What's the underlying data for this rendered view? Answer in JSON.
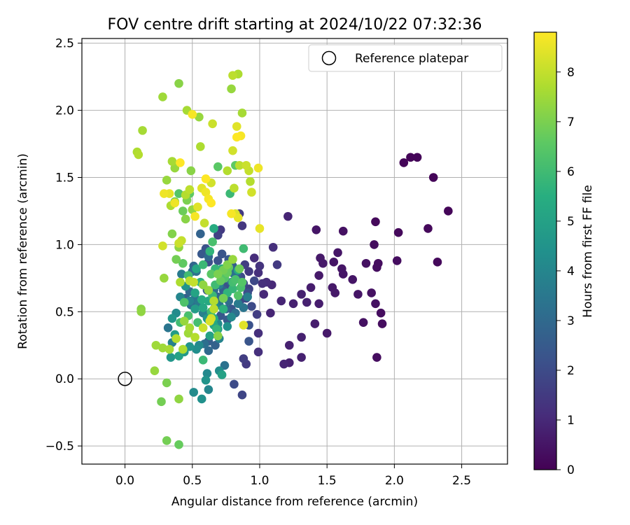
{
  "chart_data": {
    "type": "scatter",
    "title": "FOV centre drift starting at 2024/10/22 07:32:36",
    "xlabel": "Angular distance from reference (arcmin)",
    "ylabel": "Rotation from reference (arcmin)",
    "xlim": [
      -0.32,
      2.84
    ],
    "ylim": [
      -0.635,
      2.535
    ],
    "xticks": [
      0.0,
      0.5,
      1.0,
      1.5,
      2.0,
      2.5
    ],
    "xtick_labels": [
      "0.0",
      "0.5",
      "1.0",
      "1.5",
      "2.0",
      "2.5"
    ],
    "yticks": [
      -0.5,
      0.0,
      0.5,
      1.0,
      1.5,
      2.0,
      2.5
    ],
    "ytick_labels": [
      "−0.5",
      "0.0",
      "0.5",
      "1.0",
      "1.5",
      "2.0",
      "2.5"
    ],
    "grid": true,
    "legend": {
      "placement": "top-right",
      "entries": [
        {
          "label": "Reference platepar",
          "marker": "open-circle",
          "color": "#000000"
        }
      ]
    },
    "reference_point": {
      "x": 0.0,
      "y": 0.0
    },
    "colorbar": {
      "label": "Hours from first FF file",
      "colormap": "viridis",
      "range": [
        0,
        8.8
      ],
      "ticks": [
        0,
        1,
        2,
        3,
        4,
        5,
        6,
        7,
        8
      ],
      "tick_labels": [
        "0",
        "1",
        "2",
        "3",
        "4",
        "5",
        "6",
        "7",
        "8"
      ],
      "colors": [
        "#440154",
        "#472d7b",
        "#3b528b",
        "#2c728e",
        "#21918c",
        "#28ae80",
        "#5ec962",
        "#addc30",
        "#fde725"
      ]
    },
    "points": [
      [
        2.07,
        1.61,
        0.1
      ],
      [
        2.12,
        1.65,
        0.1
      ],
      [
        2.17,
        1.65,
        0.1
      ],
      [
        2.29,
        1.5,
        0.1
      ],
      [
        2.4,
        1.25,
        0.1
      ],
      [
        2.25,
        1.12,
        0.2
      ],
      [
        2.03,
        1.09,
        0.2
      ],
      [
        1.86,
        1.17,
        0.2
      ],
      [
        1.85,
        1.0,
        0.3
      ],
      [
        1.88,
        0.86,
        0.3
      ],
      [
        1.87,
        0.83,
        0.3
      ],
      [
        2.02,
        0.88,
        0.3
      ],
      [
        2.32,
        0.87,
        0.2
      ],
      [
        1.79,
        0.86,
        0.4
      ],
      [
        1.62,
        1.1,
        0.4
      ],
      [
        1.42,
        1.11,
        0.5
      ],
      [
        1.58,
        0.94,
        0.5
      ],
      [
        1.55,
        0.87,
        0.5
      ],
      [
        1.45,
        0.9,
        0.6
      ],
      [
        1.47,
        0.86,
        0.6
      ],
      [
        1.61,
        0.82,
        0.5
      ],
      [
        1.62,
        0.78,
        0.5
      ],
      [
        1.69,
        0.74,
        0.5
      ],
      [
        1.44,
        0.77,
        0.6
      ],
      [
        1.38,
        0.68,
        0.7
      ],
      [
        1.54,
        0.68,
        0.6
      ],
      [
        1.56,
        0.64,
        0.6
      ],
      [
        1.73,
        0.63,
        0.5
      ],
      [
        1.83,
        0.64,
        0.4
      ],
      [
        1.86,
        0.56,
        0.4
      ],
      [
        1.9,
        0.49,
        0.3
      ],
      [
        1.91,
        0.41,
        0.3
      ],
      [
        1.77,
        0.42,
        0.4
      ],
      [
        1.87,
        0.16,
        0.3
      ],
      [
        1.5,
        0.34,
        0.6
      ],
      [
        1.41,
        0.41,
        0.7
      ],
      [
        1.44,
        0.56,
        0.7
      ],
      [
        1.25,
        0.56,
        0.8
      ],
      [
        1.31,
        0.63,
        0.8
      ],
      [
        1.35,
        0.57,
        0.8
      ],
      [
        1.21,
        1.21,
        0.9
      ],
      [
        1.1,
        0.98,
        1.2
      ],
      [
        1.13,
        0.85,
        1.5
      ],
      [
        1.0,
        0.84,
        1.3
      ],
      [
        0.99,
        0.79,
        1.2
      ],
      [
        0.96,
        0.9,
        1.1
      ],
      [
        1.02,
        0.71,
        1.2
      ],
      [
        1.05,
        0.72,
        1.1
      ],
      [
        1.09,
        0.7,
        1.0
      ],
      [
        1.03,
        0.63,
        1.0
      ],
      [
        1.08,
        0.49,
        0.9
      ],
      [
        1.16,
        0.58,
        0.9
      ],
      [
        1.22,
        0.25,
        0.8
      ],
      [
        1.22,
        0.12,
        0.8
      ],
      [
        1.18,
        0.11,
        0.9
      ],
      [
        1.31,
        0.16,
        0.8
      ],
      [
        1.31,
        0.31,
        0.8
      ],
      [
        0.99,
        0.34,
        1.2
      ],
      [
        0.99,
        0.2,
        1.2
      ],
      [
        0.9,
        0.11,
        1.5
      ],
      [
        0.88,
        0.15,
        1.6
      ],
      [
        0.87,
        -0.12,
        1.8
      ],
      [
        0.81,
        -0.04,
        2.0
      ],
      [
        0.92,
        0.28,
        2.3
      ],
      [
        0.92,
        0.4,
        2.2
      ],
      [
        0.98,
        0.48,
        1.6
      ],
      [
        0.94,
        0.54,
        2.0
      ],
      [
        0.9,
        0.6,
        1.8
      ],
      [
        0.92,
        0.67,
        1.7
      ],
      [
        0.88,
        0.71,
        1.9
      ],
      [
        0.86,
        0.76,
        2.0
      ],
      [
        0.92,
        0.8,
        1.5
      ],
      [
        0.89,
        0.85,
        1.6
      ],
      [
        0.85,
        1.23,
        1.5
      ],
      [
        0.87,
        1.14,
        1.4
      ],
      [
        0.71,
        1.11,
        1.5
      ],
      [
        0.69,
        1.07,
        1.7
      ],
      [
        0.56,
        1.08,
        2.8
      ],
      [
        0.57,
        0.93,
        2.4
      ],
      [
        0.6,
        0.97,
        2.2
      ],
      [
        0.62,
        0.87,
        2.1
      ],
      [
        0.72,
        0.93,
        2.3
      ],
      [
        0.77,
        0.89,
        2.4
      ],
      [
        0.8,
        0.84,
        2.6
      ],
      [
        0.84,
        0.81,
        5.3
      ],
      [
        0.83,
        0.77,
        2.5
      ],
      [
        0.79,
        0.72,
        3.0
      ],
      [
        0.73,
        0.66,
        2.7
      ],
      [
        0.69,
        0.61,
        2.8
      ],
      [
        0.77,
        0.58,
        3.1
      ],
      [
        0.75,
        0.52,
        2.9
      ],
      [
        0.82,
        0.49,
        3.2
      ],
      [
        0.88,
        0.53,
        3.4
      ],
      [
        0.91,
        0.61,
        3.7
      ],
      [
        0.79,
        0.46,
        4.1
      ],
      [
        0.76,
        0.39,
        4.4
      ],
      [
        0.69,
        0.41,
        4.2
      ],
      [
        0.62,
        0.44,
        4.0
      ],
      [
        0.58,
        0.49,
        3.8
      ],
      [
        0.55,
        0.57,
        3.6
      ],
      [
        0.52,
        0.6,
        3.4
      ],
      [
        0.49,
        0.55,
        3.2
      ],
      [
        0.48,
        0.65,
        3.0
      ],
      [
        0.45,
        0.6,
        2.6
      ],
      [
        0.5,
        0.8,
        3.1
      ],
      [
        0.51,
        0.84,
        2.9
      ],
      [
        0.42,
        0.78,
        3.6
      ],
      [
        0.45,
        0.69,
        4.5
      ],
      [
        0.41,
        0.61,
        4.0
      ],
      [
        0.38,
        0.49,
        4.2
      ],
      [
        0.35,
        0.45,
        4.6
      ],
      [
        0.32,
        0.38,
        3.4
      ],
      [
        0.37,
        0.33,
        4.8
      ],
      [
        0.35,
        0.27,
        3.8
      ],
      [
        0.34,
        0.16,
        4.6
      ],
      [
        0.4,
        0.17,
        5.0
      ],
      [
        0.44,
        0.2,
        4.7
      ],
      [
        0.48,
        0.24,
        4.5
      ],
      [
        0.53,
        0.22,
        4.3
      ],
      [
        0.55,
        0.25,
        4.1
      ],
      [
        0.59,
        0.26,
        3.2
      ],
      [
        0.62,
        0.21,
        3.0
      ],
      [
        0.62,
        0.28,
        2.6
      ],
      [
        0.67,
        0.25,
        2.7
      ],
      [
        0.7,
        0.3,
        3.9
      ],
      [
        0.74,
        0.1,
        3.3
      ],
      [
        0.7,
        0.06,
        4.3
      ],
      [
        0.72,
        0.03,
        5.0
      ],
      [
        0.61,
        0.04,
        4.1
      ],
      [
        0.6,
        -0.01,
        4.5
      ],
      [
        0.62,
        -0.08,
        4.0
      ],
      [
        0.57,
        -0.15,
        4.4
      ],
      [
        0.51,
        -0.1,
        4.2
      ],
      [
        0.58,
        0.14,
        5.9
      ],
      [
        0.63,
        0.32,
        5.0
      ],
      [
        0.69,
        0.37,
        4.8
      ],
      [
        0.66,
        0.4,
        5.2
      ],
      [
        0.61,
        0.45,
        4.6
      ],
      [
        0.58,
        0.53,
        5.2
      ],
      [
        0.62,
        0.58,
        5.3
      ],
      [
        0.67,
        0.54,
        4.2
      ],
      [
        0.7,
        0.55,
        3.5
      ],
      [
        0.73,
        0.6,
        5.6
      ],
      [
        0.76,
        0.64,
        5.7
      ],
      [
        0.8,
        0.67,
        5.8
      ],
      [
        0.84,
        0.62,
        6.4
      ],
      [
        0.86,
        0.68,
        6.2
      ],
      [
        0.8,
        0.72,
        6.1
      ],
      [
        0.74,
        0.77,
        6.3
      ],
      [
        0.71,
        0.73,
        6.7
      ],
      [
        0.67,
        0.7,
        6.0
      ],
      [
        0.64,
        0.78,
        6.5
      ],
      [
        0.67,
        0.82,
        5.8
      ],
      [
        0.72,
        0.82,
        5.5
      ],
      [
        0.76,
        0.79,
        6.7
      ],
      [
        0.82,
        0.74,
        6.2
      ],
      [
        0.87,
        0.72,
        6.4
      ],
      [
        0.85,
        0.82,
        6.8
      ],
      [
        0.88,
        0.97,
        6.0
      ],
      [
        0.78,
        1.38,
        5.9
      ],
      [
        0.82,
        1.59,
        6.6
      ],
      [
        0.69,
        1.58,
        6.5
      ],
      [
        0.65,
        1.02,
        6.2
      ],
      [
        0.66,
        1.12,
        5.4
      ],
      [
        0.63,
        0.95,
        5.7
      ],
      [
        0.58,
        0.85,
        5.9
      ],
      [
        0.53,
        0.82,
        5.2
      ],
      [
        0.47,
        0.77,
        6.0
      ],
      [
        0.43,
        0.86,
        6.6
      ],
      [
        0.38,
        0.89,
        6.9
      ],
      [
        0.35,
        1.08,
        7.1
      ],
      [
        0.4,
        0.98,
        7.3
      ],
      [
        0.43,
        1.25,
        6.8
      ],
      [
        0.45,
        1.19,
        7.2
      ],
      [
        0.46,
        1.33,
        7.0
      ],
      [
        0.5,
        1.26,
        7.4
      ],
      [
        0.48,
        1.38,
        6.6
      ],
      [
        0.4,
        1.38,
        6.4
      ],
      [
        0.37,
        1.32,
        7.0
      ],
      [
        0.34,
        1.29,
        7.7
      ],
      [
        0.29,
        1.38,
        8.6
      ],
      [
        0.31,
        1.48,
        7.4
      ],
      [
        0.35,
        1.62,
        7.6
      ],
      [
        0.37,
        1.57,
        7.4
      ],
      [
        0.41,
        1.61,
        8.8
      ],
      [
        0.49,
        1.55,
        7.2
      ],
      [
        0.57,
        1.42,
        8.4
      ],
      [
        0.6,
        1.39,
        8.6
      ],
      [
        0.6,
        1.49,
        8.8
      ],
      [
        0.64,
        1.46,
        8.2
      ],
      [
        0.62,
        1.34,
        8.7
      ],
      [
        0.64,
        1.31,
        8.8
      ],
      [
        0.56,
        1.73,
        7.7
      ],
      [
        0.65,
        1.9,
        8.1
      ],
      [
        0.55,
        1.95,
        7.4
      ],
      [
        0.5,
        1.97,
        8.7
      ],
      [
        0.46,
        2.0,
        7.6
      ],
      [
        0.4,
        2.2,
        7.2
      ],
      [
        0.28,
        2.1,
        7.5
      ],
      [
        0.13,
        1.85,
        7.6
      ],
      [
        0.09,
        1.69,
        7.7
      ],
      [
        0.1,
        1.67,
        7.8
      ],
      [
        0.33,
        1.38,
        8.5
      ],
      [
        0.37,
        1.31,
        8.6
      ],
      [
        0.45,
        1.37,
        7.8
      ],
      [
        0.48,
        1.41,
        7.9
      ],
      [
        0.52,
        1.21,
        8.7
      ],
      [
        0.54,
        1.28,
        8.4
      ],
      [
        0.59,
        1.16,
        8.0
      ],
      [
        0.42,
        1.03,
        8.0
      ],
      [
        0.4,
        1.01,
        8.1
      ],
      [
        0.28,
        0.99,
        8.2
      ],
      [
        0.29,
        0.75,
        7.4
      ],
      [
        0.41,
        0.72,
        7.7
      ],
      [
        0.48,
        0.73,
        7.9
      ],
      [
        0.51,
        0.72,
        8.0
      ],
      [
        0.58,
        0.7,
        7.3
      ],
      [
        0.62,
        0.66,
        7.4
      ],
      [
        0.66,
        0.58,
        7.8
      ],
      [
        0.66,
        0.52,
        7.9
      ],
      [
        0.64,
        0.45,
        8.2
      ],
      [
        0.58,
        0.38,
        8.1
      ],
      [
        0.52,
        0.31,
        7.8
      ],
      [
        0.48,
        0.38,
        7.6
      ],
      [
        0.44,
        0.43,
        7.4
      ],
      [
        0.47,
        0.34,
        7.5
      ],
      [
        0.43,
        0.22,
        7.7
      ],
      [
        0.38,
        0.3,
        7.8
      ],
      [
        0.33,
        0.22,
        7.6
      ],
      [
        0.28,
        0.23,
        7.5
      ],
      [
        0.23,
        0.25,
        7.5
      ],
      [
        0.12,
        0.52,
        7.2
      ],
      [
        0.12,
        0.5,
        7.3
      ],
      [
        0.22,
        0.06,
        7.4
      ],
      [
        0.31,
        -0.03,
        7.0
      ],
      [
        0.27,
        -0.17,
        6.9
      ],
      [
        0.4,
        -0.15,
        7.3
      ],
      [
        0.31,
        -0.46,
        6.9
      ],
      [
        0.4,
        -0.49,
        6.7
      ],
      [
        0.63,
        0.43,
        8.3
      ],
      [
        0.69,
        0.32,
        7.2
      ],
      [
        0.69,
        0.78,
        7.0
      ],
      [
        0.73,
        0.81,
        6.9
      ],
      [
        0.76,
        0.85,
        7.1
      ],
      [
        0.8,
        0.89,
        7.4
      ],
      [
        0.77,
        0.83,
        6.6
      ],
      [
        0.74,
        0.75,
        6.4
      ],
      [
        0.84,
        1.2,
        8.5
      ],
      [
        0.82,
        1.23,
        8.3
      ],
      [
        0.79,
        1.23,
        8.7
      ],
      [
        0.76,
        1.55,
        7.8
      ],
      [
        0.85,
        1.59,
        7.9
      ],
      [
        0.9,
        1.59,
        8.1
      ],
      [
        0.93,
        1.47,
        7.8
      ],
      [
        0.94,
        1.39,
        8.2
      ],
      [
        0.8,
        1.7,
        8.2
      ],
      [
        0.83,
        1.8,
        8.8
      ],
      [
        0.86,
        1.81,
        8.7
      ],
      [
        0.83,
        1.88,
        8.4
      ],
      [
        0.87,
        1.98,
        7.6
      ],
      [
        0.79,
        2.16,
        7.4
      ],
      [
        0.8,
        2.26,
        7.9
      ],
      [
        0.84,
        2.27,
        7.7
      ],
      [
        0.81,
        1.42,
        7.9
      ],
      [
        0.92,
        1.55,
        8.0
      ],
      [
        0.99,
        1.57,
        8.6
      ],
      [
        1.0,
        1.12,
        8.5
      ],
      [
        0.88,
        0.4,
        8.4
      ],
      [
        0.73,
        0.6,
        6.9
      ],
      [
        0.64,
        0.5,
        6.0
      ],
      [
        0.56,
        0.72,
        5.6
      ],
      [
        0.52,
        0.64,
        5.1
      ],
      [
        0.52,
        0.52,
        4.8
      ],
      [
        0.44,
        0.57,
        6.3
      ],
      [
        0.41,
        0.42,
        6.0
      ],
      [
        0.47,
        0.47,
        6.2
      ],
      [
        0.57,
        0.59,
        5.4
      ],
      [
        0.65,
        0.62,
        5.9
      ],
      [
        0.71,
        0.47,
        2.4
      ],
      [
        0.76,
        0.44,
        2.5
      ],
      [
        0.79,
        0.52,
        2.3
      ],
      [
        0.73,
        0.7,
        2.2
      ],
      [
        0.77,
        0.68,
        2.1
      ],
      [
        0.81,
        0.78,
        3.3
      ],
      [
        0.84,
        0.56,
        3.6
      ],
      [
        0.86,
        0.59,
        2.0
      ],
      [
        0.91,
        0.64,
        2.1
      ],
      [
        0.96,
        0.73,
        1.9
      ],
      [
        0.69,
        0.88,
        2.2
      ],
      [
        0.62,
        0.91,
        3.0
      ],
      [
        0.53,
        0.8,
        3.3
      ],
      [
        0.48,
        0.58,
        3.9
      ],
      [
        0.61,
        0.66,
        2.5
      ],
      [
        0.66,
        0.66,
        3.1
      ],
      [
        0.7,
        0.7,
        3.8
      ],
      [
        0.6,
        0.48,
        3.0
      ],
      [
        0.66,
        0.45,
        5.4
      ],
      [
        0.73,
        0.52,
        5.6
      ],
      [
        0.68,
        0.37,
        5.8
      ],
      [
        0.54,
        0.42,
        6.1
      ]
    ]
  }
}
